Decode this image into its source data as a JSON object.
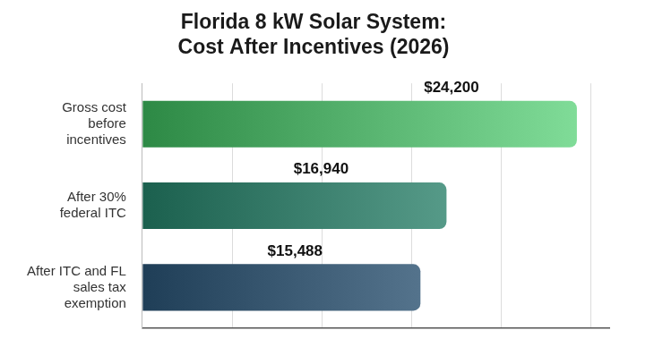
{
  "chart_data": {
    "type": "bar",
    "orientation": "horizontal",
    "title": "Florida 8 kW Solar System: Cost After Incentives (2026)",
    "categories": [
      "Gross cost before incentives",
      "After 30% federal ITC",
      "After ITC and FL sales tax exemption"
    ],
    "values": [
      24200,
      16940,
      15488
    ],
    "value_labels": [
      "$24,200",
      "$16,940",
      "$15,488"
    ],
    "colors": [
      "#45d36a",
      "#2a9478",
      "#2f5f86"
    ],
    "xlim": [
      0,
      26000
    ],
    "xticks": [
      0,
      5000,
      10000,
      15000,
      20000,
      25000
    ],
    "grid": true,
    "data_labels": true,
    "tick_labels": "y"
  }
}
